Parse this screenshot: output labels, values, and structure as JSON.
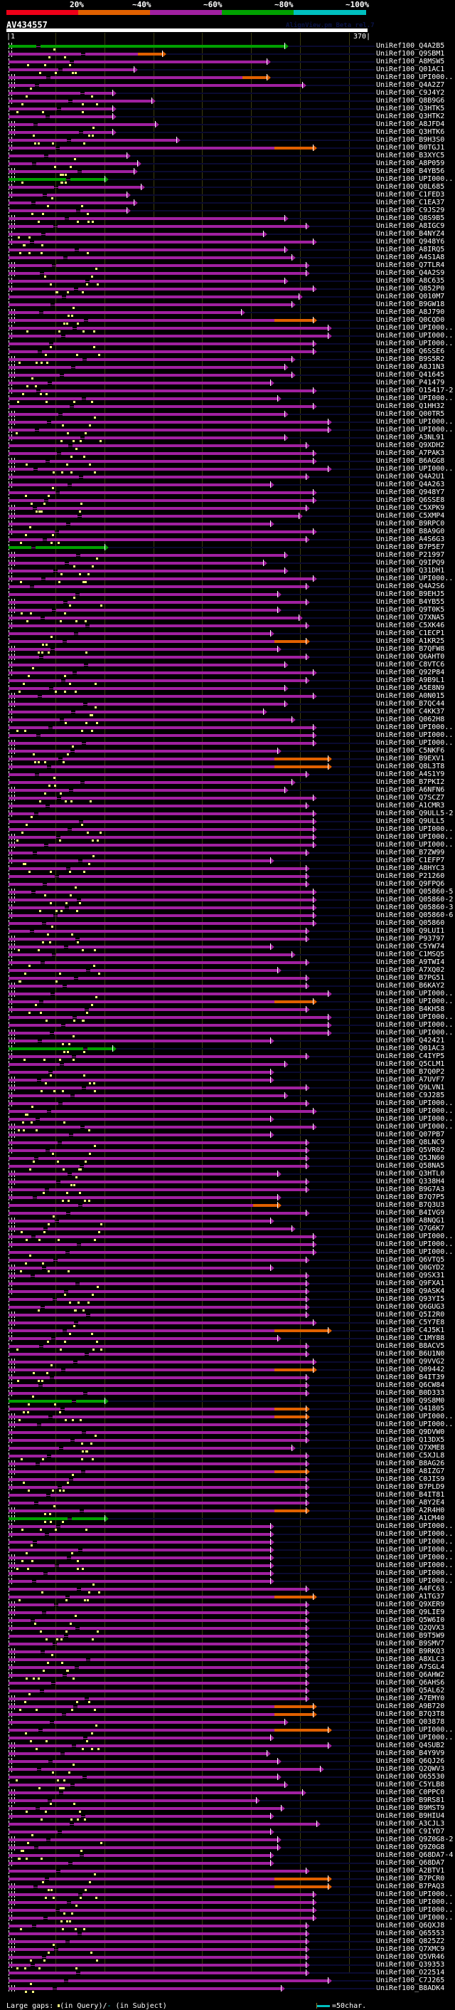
{
  "header": {
    "percent_legend": [
      "20%",
      "~40%",
      "~60%",
      "~80%",
      "~100%"
    ],
    "band_colors": [
      "#ee0018",
      "#e06000",
      "#a020a0",
      "#00a000",
      "#00c0c0"
    ],
    "query_name": "AV434557",
    "watermark": "AlignView.pm Beta rel.7",
    "scale_start": "|1",
    "scale_end": "370|"
  },
  "colors": {
    "identity_40_60": "#a020a0",
    "identity_80": "#00a000",
    "identity_40": "#e06000",
    "unaligned_tail": "#0a0a30",
    "query_gap": "#ffff80"
  },
  "hits": [
    {
      "label": "UniRef100_Q4A2B5",
      "end": 0.78,
      "color": "green"
    },
    {
      "label": "UniRef100_Q9SBM1",
      "end": 0.44,
      "color": "orange"
    },
    {
      "label": "UniRef100_A8MSW5",
      "end": 0.73
    },
    {
      "label": "UniRef100_Q01AC1",
      "end": 0.36
    },
    {
      "label": "UniRef100_UPI000..",
      "end": 0.73,
      "color": "orange"
    },
    {
      "label": "UniRef100_Q4A2Z7",
      "end": 0.83
    },
    {
      "label": "UniRef100_C9J4Y2",
      "end": 0.3
    },
    {
      "label": "UniRef100_Q8B9G6",
      "end": 0.41
    },
    {
      "label": "UniRef100_Q3HTK5",
      "end": 0.3
    },
    {
      "label": "UniRef100_Q3HTK2",
      "end": 0.3
    },
    {
      "label": "UniRef100_A8JFD4",
      "end": 0.42
    },
    {
      "label": "UniRef100_Q3HTK6",
      "end": 0.3
    },
    {
      "label": "UniRef100_B9H3S0",
      "end": 0.48
    },
    {
      "label": "UniRef100_B0TGJ1",
      "end": 0.86,
      "color": "orange"
    },
    {
      "label": "UniRef100_B3XYC5",
      "end": 0.34
    },
    {
      "label": "UniRef100_A8P059",
      "end": 0.37
    },
    {
      "label": "UniRef100_B4YB56",
      "end": 0.36
    },
    {
      "label": "UniRef100_UPI000..",
      "end": 0.28,
      "color": "green"
    },
    {
      "label": "UniRef100_Q8L685",
      "end": 0.38
    },
    {
      "label": "UniRef100_C1FED3",
      "end": 0.34
    },
    {
      "label": "UniRef100_C1EA37",
      "end": 0.36
    },
    {
      "label": "UniRef100_C9JS29",
      "end": 0.34
    },
    {
      "label": "UniRef100_Q8S9B5",
      "end": 0.78
    },
    {
      "label": "UniRef100_A8IGC9",
      "end": 0.84
    },
    {
      "label": "UniRef100_B4NYZ4",
      "end": 0.72
    },
    {
      "label": "UniRef100_Q948Y6",
      "end": 0.86
    },
    {
      "label": "UniRef100_A8IRQ5",
      "end": 0.78
    },
    {
      "label": "UniRef100_A4S1A8",
      "end": 0.8
    },
    {
      "label": "UniRef100_Q7TLR4",
      "end": 0.84
    },
    {
      "label": "UniRef100_Q4A2S9",
      "end": 0.84
    },
    {
      "label": "UniRef100_A8C635",
      "end": 0.78
    },
    {
      "label": "UniRef100_Q852P0",
      "end": 0.86
    },
    {
      "label": "UniRef100_Q010M7",
      "end": 0.82
    },
    {
      "label": "UniRef100_B9GW18",
      "end": 0.8
    },
    {
      "label": "UniRef100_A8J790",
      "end": 0.66
    },
    {
      "label": "UniRef100_Q0CQD0",
      "end": 0.86,
      "color": "orange"
    },
    {
      "label": "UniRef100_UPI000..",
      "end": 0.9
    },
    {
      "label": "UniRef100_UPI000..",
      "end": 0.9
    },
    {
      "label": "UniRef100_UPI000..",
      "end": 0.86
    },
    {
      "label": "UniRef100_Q6SSE6",
      "end": 0.86
    },
    {
      "label": "UniRef100_B9S5R2",
      "end": 0.8
    },
    {
      "label": "UniRef100_A8J1N3",
      "end": 0.78
    },
    {
      "label": "UniRef100_Q41645",
      "end": 0.8
    },
    {
      "label": "UniRef100_P41479",
      "end": 0.74
    },
    {
      "label": "UniRef100_O15417-2",
      "end": 0.86
    },
    {
      "label": "UniRef100_UPI000..",
      "end": 0.76
    },
    {
      "label": "UniRef100_Q1HH32",
      "end": 0.86
    },
    {
      "label": "UniRef100_Q00TR5",
      "end": 0.78
    },
    {
      "label": "UniRef100_UPI000..",
      "end": 0.9
    },
    {
      "label": "UniRef100_UPI000..",
      "end": 0.9
    },
    {
      "label": "UniRef100_A3NL91",
      "end": 0.78
    },
    {
      "label": "UniRef100_Q9XDH2",
      "end": 0.84
    },
    {
      "label": "UniRef100_A7PAK3",
      "end": 0.86
    },
    {
      "label": "UniRef100_B6AGG8",
      "end": 0.86
    },
    {
      "label": "UniRef100_UPI000..",
      "end": 0.9
    },
    {
      "label": "UniRef100_Q4A2U1",
      "end": 0.84
    },
    {
      "label": "UniRef100_Q4A263",
      "end": 0.74
    },
    {
      "label": "UniRef100_Q948Y7",
      "end": 0.86
    },
    {
      "label": "UniRef100_Q6SSE8",
      "end": 0.86
    },
    {
      "label": "UniRef100_C5XPK9",
      "end": 0.84
    },
    {
      "label": "UniRef100_C5XMP4",
      "end": 0.82
    },
    {
      "label": "UniRef100_B9RPC0",
      "end": 0.74
    },
    {
      "label": "UniRef100_B8A9G0",
      "end": 0.86
    },
    {
      "label": "UniRef100_A4S6G3",
      "end": 0.84
    },
    {
      "label": "UniRef100_B7P5E7",
      "end": 0.28,
      "color": "green"
    },
    {
      "label": "UniRef100_P21997",
      "end": 0.78
    },
    {
      "label": "UniRef100_Q9IPQ9",
      "end": 0.72
    },
    {
      "label": "UniRef100_Q31DH1",
      "end": 0.78
    },
    {
      "label": "UniRef100_UPI000..",
      "end": 0.86
    },
    {
      "label": "UniRef100_Q4A2S6",
      "end": 0.84
    },
    {
      "label": "UniRef100_B9EHJ5",
      "end": 0.76
    },
    {
      "label": "UniRef100_B4YB55",
      "end": 0.84
    },
    {
      "label": "UniRef100_Q9T0K5",
      "end": 0.76
    },
    {
      "label": "UniRef100_Q7XNA5",
      "end": 0.82
    },
    {
      "label": "UniRef100_C5XK46",
      "end": 0.84
    },
    {
      "label": "UniRef100_C1ECP1",
      "end": 0.74
    },
    {
      "label": "UniRef100_A1KR25",
      "end": 0.84,
      "color": "orange"
    },
    {
      "label": "UniRef100_B7QFW8",
      "end": 0.76
    },
    {
      "label": "UniRef100_Q6AHT0",
      "end": 0.84
    },
    {
      "label": "UniRef100_C8VTC6",
      "end": 0.78
    },
    {
      "label": "UniRef100_Q92P84",
      "end": 0.86
    },
    {
      "label": "UniRef100_A9B9L1",
      "end": 0.84
    },
    {
      "label": "UniRef100_A5E8N9",
      "end": 0.78
    },
    {
      "label": "UniRef100_A0N015",
      "end": 0.86
    },
    {
      "label": "UniRef100_B7QC44",
      "end": 0.78
    },
    {
      "label": "UniRef100_C4KK37",
      "end": 0.72
    },
    {
      "label": "UniRef100_Q062H8",
      "end": 0.8
    },
    {
      "label": "UniRef100_UPI000..",
      "end": 0.86
    },
    {
      "label": "UniRef100_UPI000..",
      "end": 0.86
    },
    {
      "label": "UniRef100_UPI000..",
      "end": 0.86
    },
    {
      "label": "UniRef100_C5NKF6",
      "end": 0.76
    },
    {
      "label": "UniRef100_B9EXV1",
      "end": 0.9,
      "color": "orange"
    },
    {
      "label": "UniRef100_Q8L3T8",
      "end": 0.9,
      "color": "orange"
    },
    {
      "label": "UniRef100_A4S1Y9",
      "end": 0.84
    },
    {
      "label": "UniRef100_B7PKI2",
      "end": 0.8
    },
    {
      "label": "UniRef100_A6NFN6",
      "end": 0.78
    },
    {
      "label": "UniRef100_Q7SCZ7",
      "end": 0.86
    },
    {
      "label": "UniRef100_A1CMR3",
      "end": 0.84
    },
    {
      "label": "UniRef100_Q9ULL5-2",
      "end": 0.86
    },
    {
      "label": "UniRef100_Q9ULL5",
      "end": 0.86
    },
    {
      "label": "UniRef100_UPI000..",
      "end": 0.86
    },
    {
      "label": "UniRef100_UPI000..",
      "end": 0.86
    },
    {
      "label": "UniRef100_UPI000..",
      "end": 0.86
    },
    {
      "label": "UniRef100_B7ZW99",
      "end": 0.84
    },
    {
      "label": "UniRef100_C1EFP7",
      "end": 0.74
    },
    {
      "label": "UniRef100_A8HYC3",
      "end": 0.84
    },
    {
      "label": "UniRef100_P21260",
      "end": 0.84
    },
    {
      "label": "UniRef100_Q9FPQ6",
      "end": 0.84
    },
    {
      "label": "UniRef100_Q05860-5",
      "end": 0.86
    },
    {
      "label": "UniRef100_Q05860-2",
      "end": 0.86
    },
    {
      "label": "UniRef100_Q05860-3",
      "end": 0.86
    },
    {
      "label": "UniRef100_Q05860-6",
      "end": 0.86
    },
    {
      "label": "UniRef100_Q05860",
      "end": 0.86
    },
    {
      "label": "UniRef100_Q9LUI1",
      "end": 0.84
    },
    {
      "label": "UniRef100_P93797",
      "end": 0.84
    },
    {
      "label": "UniRef100_C5YW74",
      "end": 0.74
    },
    {
      "label": "UniRef100_C1MSQ5",
      "end": 0.8
    },
    {
      "label": "UniRef100_A9TWI4",
      "end": 0.84
    },
    {
      "label": "UniRef100_A7XQ02",
      "end": 0.76
    },
    {
      "label": "UniRef100_B7PG51",
      "end": 0.84
    },
    {
      "label": "UniRef100_B6KAY2",
      "end": 0.84
    },
    {
      "label": "UniRef100_UPI000..",
      "end": 0.9
    },
    {
      "label": "UniRef100_UPI000..",
      "end": 0.86,
      "color": "orange"
    },
    {
      "label": "UniRef100_B4KH58",
      "end": 0.84
    },
    {
      "label": "UniRef100_UPI000..",
      "end": 0.9
    },
    {
      "label": "UniRef100_UPI000..",
      "end": 0.9
    },
    {
      "label": "UniRef100_UPI000..",
      "end": 0.9
    },
    {
      "label": "UniRef100_Q42421",
      "end": 0.74
    },
    {
      "label": "UniRef100_Q01AC3",
      "end": 0.3,
      "color": "green"
    },
    {
      "label": "UniRef100_C4IYP5",
      "end": 0.84
    },
    {
      "label": "UniRef100_Q5CLM1",
      "end": 0.78
    },
    {
      "label": "UniRef100_B7Q0P2",
      "end": 0.74
    },
    {
      "label": "UniRef100_A7UVF7",
      "end": 0.74
    },
    {
      "label": "UniRef100_Q9LVN1",
      "end": 0.84
    },
    {
      "label": "UniRef100_C9J285",
      "end": 0.78
    },
    {
      "label": "UniRef100_UPI000..",
      "end": 0.84
    },
    {
      "label": "UniRef100_UPI000..",
      "end": 0.86
    },
    {
      "label": "UniRef100_UPI000..",
      "end": 0.74
    },
    {
      "label": "UniRef100_UPI000..",
      "end": 0.86
    },
    {
      "label": "UniRef100_Q07PB7",
      "end": 0.74
    },
    {
      "label": "UniRef100_Q8LNC9",
      "end": 0.84
    },
    {
      "label": "UniRef100_Q5VR02",
      "end": 0.84
    },
    {
      "label": "UniRef100_Q5JN60",
      "end": 0.84
    },
    {
      "label": "UniRef100_Q58NA5",
      "end": 0.84
    },
    {
      "label": "UniRef100_Q3HTL0",
      "end": 0.76
    },
    {
      "label": "UniRef100_Q338H4",
      "end": 0.84
    },
    {
      "label": "UniRef100_B9G7A3",
      "end": 0.84
    },
    {
      "label": "UniRef100_B7Q7P5",
      "end": 0.76
    },
    {
      "label": "UniRef100_B7Q3U3",
      "end": 0.76,
      "color": "orange"
    },
    {
      "label": "UniRef100_B4IVG9",
      "end": 0.84
    },
    {
      "label": "UniRef100_A8NQG1",
      "end": 0.74
    },
    {
      "label": "UniRef100_Q7G6K7",
      "end": 0.8
    },
    {
      "label": "UniRef100_UPI000..",
      "end": 0.86
    },
    {
      "label": "UniRef100_UPI000..",
      "end": 0.86
    },
    {
      "label": "UniRef100_UPI000..",
      "end": 0.86
    },
    {
      "label": "UniRef100_Q6VTQ5",
      "end": 0.84
    },
    {
      "label": "UniRef100_Q0GYD2",
      "end": 0.74
    },
    {
      "label": "UniRef100_Q9SX31",
      "end": 0.84
    },
    {
      "label": "UniRef100_Q9FXA1",
      "end": 0.84
    },
    {
      "label": "UniRef100_Q9ASK4",
      "end": 0.84
    },
    {
      "label": "UniRef100_Q93YI5",
      "end": 0.84
    },
    {
      "label": "UniRef100_Q6GUG3",
      "end": 0.84
    },
    {
      "label": "UniRef100_Q5I2R0",
      "end": 0.84
    },
    {
      "label": "UniRef100_C5Y7E8",
      "end": 0.86
    },
    {
      "label": "UniRef100_C4J5K1",
      "end": 0.9,
      "color": "orange"
    },
    {
      "label": "UniRef100_C1MY88",
      "end": 0.76
    },
    {
      "label": "UniRef100_B8ACV5",
      "end": 0.84
    },
    {
      "label": "UniRef100_B6U1N0",
      "end": 0.84
    },
    {
      "label": "UniRef100_Q9VVG2",
      "end": 0.86
    },
    {
      "label": "UniRef100_Q09442",
      "end": 0.86,
      "color": "orange"
    },
    {
      "label": "UniRef100_B4IT39",
      "end": 0.84
    },
    {
      "label": "UniRef100_Q6CW84",
      "end": 0.84
    },
    {
      "label": "UniRef100_B0D333",
      "end": 0.84
    },
    {
      "label": "UniRef100_Q9S8M0",
      "end": 0.28,
      "color": "green"
    },
    {
      "label": "UniRef100_Q41805",
      "end": 0.84,
      "color": "orange"
    },
    {
      "label": "UniRef100_UPI000..",
      "end": 0.84,
      "color": "orange"
    },
    {
      "label": "UniRef100_UPI000..",
      "end": 0.84
    },
    {
      "label": "UniRef100_Q9DVW0",
      "end": 0.84
    },
    {
      "label": "UniRef100_Q13DX5",
      "end": 0.84
    },
    {
      "label": "UniRef100_Q7XME8",
      "end": 0.8
    },
    {
      "label": "UniRef100_C5XJL8",
      "end": 0.84
    },
    {
      "label": "UniRef100_B8AG26",
      "end": 0.84
    },
    {
      "label": "UniRef100_A8IZG7",
      "end": 0.84,
      "color": "orange"
    },
    {
      "label": "UniRef100_C0JIS9",
      "end": 0.84
    },
    {
      "label": "UniRef100_B7PLD9",
      "end": 0.84
    },
    {
      "label": "UniRef100_B4IT81",
      "end": 0.84
    },
    {
      "label": "UniRef100_A8Y2E4",
      "end": 0.84
    },
    {
      "label": "UniRef100_A2R4H0",
      "end": 0.84,
      "color": "orange"
    },
    {
      "label": "UniRef100_A1CM40",
      "end": 0.28,
      "color": "green"
    },
    {
      "label": "UniRef100_UPI000..",
      "end": 0.74
    },
    {
      "label": "UniRef100_UPI000..",
      "end": 0.74
    },
    {
      "label": "UniRef100_UPI000..",
      "end": 0.74
    },
    {
      "label": "UniRef100_UPI000..",
      "end": 0.74
    },
    {
      "label": "UniRef100_UPI000..",
      "end": 0.74
    },
    {
      "label": "UniRef100_UPI000..",
      "end": 0.74
    },
    {
      "label": "UniRef100_UPI000..",
      "end": 0.74
    },
    {
      "label": "UniRef100_UPI000..",
      "end": 0.74
    },
    {
      "label": "UniRef100_A4FC63",
      "end": 0.84
    },
    {
      "label": "UniRef100_A1TG37",
      "end": 0.86,
      "color": "orange"
    },
    {
      "label": "UniRef100_Q9XER9",
      "end": 0.84
    },
    {
      "label": "UniRef100_Q9LIE9",
      "end": 0.84
    },
    {
      "label": "UniRef100_Q5W6I0",
      "end": 0.84
    },
    {
      "label": "UniRef100_Q2QVX3",
      "end": 0.84
    },
    {
      "label": "UniRef100_B9T5W9",
      "end": 0.84
    },
    {
      "label": "UniRef100_B9SMV7",
      "end": 0.84
    },
    {
      "label": "UniRef100_B9RKQ3",
      "end": 0.84
    },
    {
      "label": "UniRef100_A8XLC3",
      "end": 0.84
    },
    {
      "label": "UniRef100_A7SGL4",
      "end": 0.84
    },
    {
      "label": "UniRef100_Q6AHW2",
      "end": 0.84
    },
    {
      "label": "UniRef100_Q6AHS6",
      "end": 0.84
    },
    {
      "label": "UniRef100_Q5AL62",
      "end": 0.84
    },
    {
      "label": "UniRef100_A7EMY0",
      "end": 0.84
    },
    {
      "label": "UniRef100_A9B720",
      "end": 0.86,
      "color": "orange"
    },
    {
      "label": "UniRef100_B7Q3T8",
      "end": 0.86,
      "color": "orange"
    },
    {
      "label": "UniRef100_Q03878",
      "end": 0.78
    },
    {
      "label": "UniRef100_UPI000..",
      "end": 0.9,
      "color": "orange"
    },
    {
      "label": "UniRef100_UPI000..",
      "end": 0.74
    },
    {
      "label": "UniRef100_Q4SUB2",
      "end": 0.9
    },
    {
      "label": "UniRef100_B4Y9V9",
      "end": 0.73
    },
    {
      "label": "UniRef100_Q6QJ26",
      "end": 0.76
    },
    {
      "label": "UniRef100_Q2QWV3",
      "end": 0.88
    },
    {
      "label": "UniRef100_O65530",
      "end": 0.76
    },
    {
      "label": "UniRef100_C5YLB8",
      "end": 0.78
    },
    {
      "label": "UniRef100_C0PPC0",
      "end": 0.83
    },
    {
      "label": "UniRef100_B9RS81",
      "end": 0.7
    },
    {
      "label": "UniRef100_B9MST9",
      "end": 0.77
    },
    {
      "label": "UniRef100_B9HIU4",
      "end": 0.74
    },
    {
      "label": "UniRef100_A3CJL3",
      "end": 0.87
    },
    {
      "label": "UniRef100_C9IYD7",
      "end": 0.74
    },
    {
      "label": "UniRef100_Q9Z0G8-2",
      "end": 0.76
    },
    {
      "label": "UniRef100_Q9Z0G8",
      "end": 0.76
    },
    {
      "label": "UniRef100_Q68DA7-4",
      "end": 0.74
    },
    {
      "label": "UniRef100_Q68DA7",
      "end": 0.74
    },
    {
      "label": "UniRef100_A2BTV1",
      "end": 0.84
    },
    {
      "label": "UniRef100_B7PCR0",
      "end": 0.9,
      "color": "orange"
    },
    {
      "label": "UniRef100_B7PAQ3",
      "end": 0.9,
      "color": "orange"
    },
    {
      "label": "UniRef100_UPI000..",
      "end": 0.86
    },
    {
      "label": "UniRef100_UPI000..",
      "end": 0.86
    },
    {
      "label": "UniRef100_UPI000..",
      "end": 0.86
    },
    {
      "label": "UniRef100_UPI000..",
      "end": 0.86
    },
    {
      "label": "UniRef100_Q6QXJ8",
      "end": 0.84
    },
    {
      "label": "UniRef100_Q65553",
      "end": 0.84
    },
    {
      "label": "UniRef100_Q825Z2",
      "end": 0.84
    },
    {
      "label": "UniRef100_Q7XMC9",
      "end": 0.84
    },
    {
      "label": "UniRef100_Q5VR46",
      "end": 0.84
    },
    {
      "label": "UniRef100_Q39353",
      "end": 0.84
    },
    {
      "label": "UniRef100_O22514",
      "end": 0.84
    },
    {
      "label": "UniRef100_C7J265",
      "end": 0.9
    },
    {
      "label": "UniRef100_B8ADK4",
      "end": 0.77
    }
  ],
  "footer": {
    "large_gaps_label": "Large gaps:",
    "in_query": "(in Query)/",
    "subject_dash": "-",
    "in_subject": " (in Subject)",
    "scale_label": "=50char."
  }
}
